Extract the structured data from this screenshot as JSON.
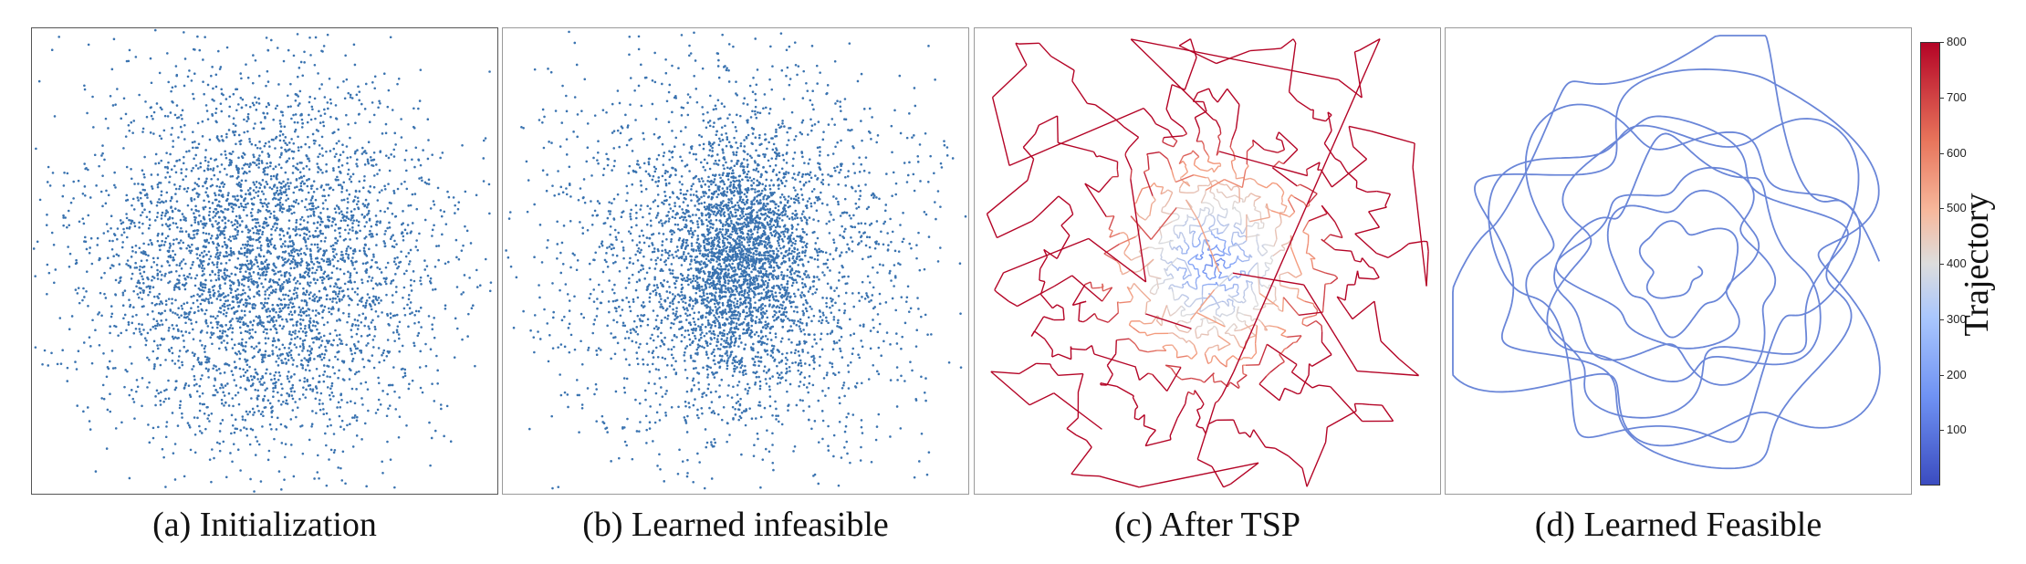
{
  "panels": [
    {
      "id": "a",
      "caption": "(a) Initialization",
      "kind": "points",
      "distribution": "gaussian-wide",
      "count": 4200,
      "color": "#3a73b0"
    },
    {
      "id": "b",
      "caption": "(b) Learned infeasible",
      "kind": "points",
      "distribution": "dense-core",
      "count": 4600,
      "color": "#3a73b0"
    },
    {
      "id": "c",
      "caption": "(c) After TSP",
      "kind": "tsp-path",
      "colormap": "coolwarm"
    },
    {
      "id": "d",
      "caption": "(d) Learned Feasible",
      "kind": "smooth-curve",
      "color": "#6a86d8"
    }
  ],
  "colorbar": {
    "label": "Trajectory",
    "colormap": "coolwarm",
    "min": 0,
    "max": 800,
    "ticks": [
      "800",
      "700",
      "600",
      "500",
      "400",
      "300",
      "200",
      "100"
    ]
  }
}
